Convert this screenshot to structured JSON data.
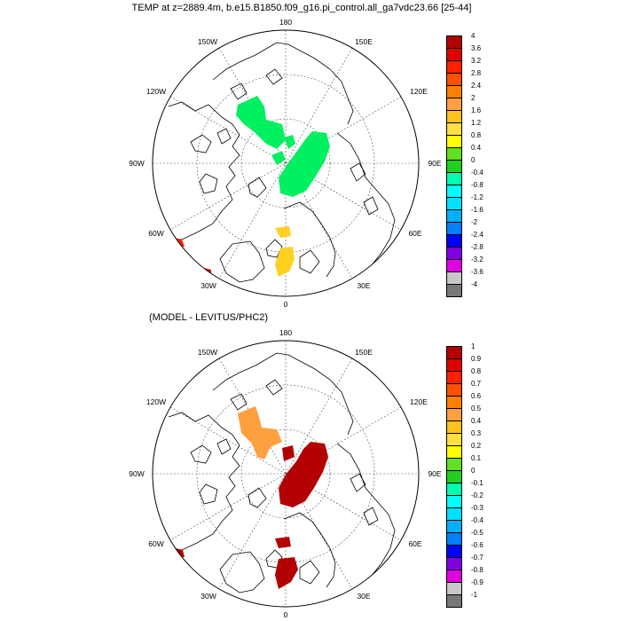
{
  "titles": {
    "main": "TEMP at z=2889.4m, b.e15.B1850.f09_g16.pi_control.all_ga7vdc23.66 [25-44]",
    "sub": "(MODEL - LEVITUS/PHC2)"
  },
  "longitude_labels": [
    "180",
    "150E",
    "120E",
    "90E",
    "60E",
    "30E",
    "0",
    "30W",
    "60W",
    "90W",
    "120W",
    "150W"
  ],
  "panels": [
    {
      "name": "model-temperature",
      "colorbar": {
        "labels": [
          "4",
          "3.6",
          "3.2",
          "2.8",
          "2.4",
          "2",
          "1.6",
          "1.2",
          "0.8",
          "0.4",
          "0",
          "-0.4",
          "-0.8",
          "-1.2",
          "-1.6",
          "-2",
          "-2.4",
          "-2.8",
          "-3.2",
          "-3.6",
          "-4"
        ]
      }
    },
    {
      "name": "model-minus-levitus",
      "colorbar": {
        "labels": [
          "1",
          "0.9",
          "0.8",
          "0.7",
          "0.6",
          "0.5",
          "0.4",
          "0.3",
          "0.2",
          "0.1",
          "0",
          "-0.1",
          "-0.2",
          "-0.3",
          "-0.4",
          "-0.5",
          "-0.6",
          "-0.7",
          "-0.8",
          "-0.9",
          "-1"
        ]
      }
    }
  ],
  "colorbar_colors": [
    "#b30000",
    "#e00000",
    "#ff2000",
    "#ff5000",
    "#ff8000",
    "#ffa040",
    "#ffc020",
    "#ffe040",
    "#ffff00",
    "#60e020",
    "#20d020",
    "#00ffb0",
    "#00ffff",
    "#00e0ff",
    "#00b0ff",
    "#0080ff",
    "#0000ff",
    "#8000e0",
    "#e000e0",
    "#c8c8c8",
    "#787878"
  ]
}
